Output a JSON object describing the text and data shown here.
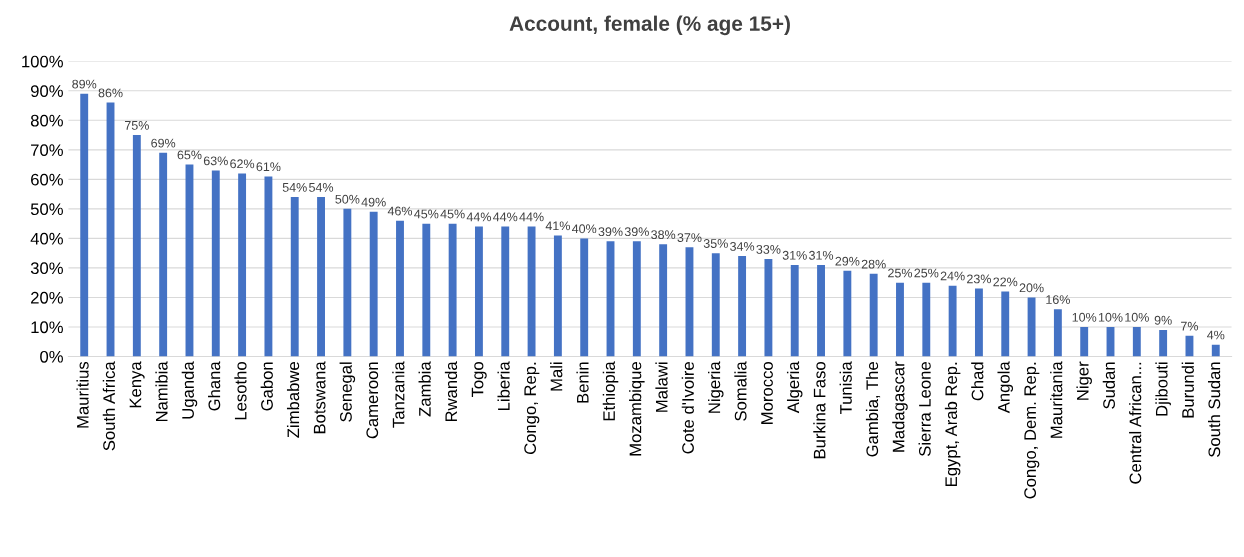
{
  "chart_data": {
    "type": "bar",
    "title": "Account, female (% age 15+)",
    "categories": [
      "Mauritius",
      "South Africa",
      "Kenya",
      "Namibia",
      "Uganda",
      "Ghana",
      "Lesotho",
      "Gabon",
      "Zimbabwe",
      "Botswana",
      "Senegal",
      "Cameroon",
      "Tanzania",
      "Zambia",
      "Rwanda",
      "Togo",
      "Liberia",
      "Congo, Rep.",
      "Mali",
      "Benin",
      "Ethiopia",
      "Mozambique",
      "Malawi",
      "Cote d'Ivoire",
      "Nigeria",
      "Somalia",
      "Morocco",
      "Algeria",
      "Burkina Faso",
      "Tunisia",
      "Gambia, The",
      "Madagascar",
      "Sierra Leone",
      "Egypt, Arab Rep.",
      "Chad",
      "Angola",
      "Congo, Dem. Rep.",
      "Mauritania",
      "Niger",
      "Sudan",
      "Central African...",
      "Djibouti",
      "Burundi",
      "South Sudan"
    ],
    "values": [
      89,
      86,
      75,
      69,
      65,
      63,
      62,
      61,
      54,
      54,
      50,
      49,
      46,
      45,
      45,
      44,
      44,
      44,
      41,
      40,
      39,
      39,
      38,
      37,
      35,
      34,
      33,
      31,
      31,
      29,
      28,
      25,
      25,
      24,
      23,
      22,
      20,
      16,
      10,
      10,
      10,
      9,
      7,
      4
    ],
    "value_labels": [
      "89%",
      "86%",
      "75%",
      "69%",
      "65%",
      "63%",
      "62%",
      "61%",
      "54%",
      "54%",
      "50%",
      "49%",
      "46%",
      "45%",
      "45%",
      "44%",
      "44%",
      "44%",
      "41%",
      "40%",
      "39%",
      "39%",
      "38%",
      "37%",
      "35%",
      "34%",
      "33%",
      "31%",
      "31%",
      "29%",
      "28%",
      "25%",
      "25%",
      "24%",
      "23%",
      "22%",
      "20%",
      "16%",
      "10%",
      "10%",
      "10%",
      "9%",
      "7%",
      "4%"
    ],
    "color": "#4472c4",
    "ylim": [
      0,
      100
    ],
    "yticks": [
      {
        "value": 0,
        "label": "0%"
      },
      {
        "value": 10,
        "label": "10%"
      },
      {
        "value": 20,
        "label": "20%"
      },
      {
        "value": 30,
        "label": "30%"
      },
      {
        "value": 40,
        "label": "40%"
      },
      {
        "value": 50,
        "label": "50%"
      },
      {
        "value": 60,
        "label": "60%"
      },
      {
        "value": 70,
        "label": "70%"
      },
      {
        "value": 80,
        "label": "80%"
      },
      {
        "value": 90,
        "label": "90%"
      },
      {
        "value": 100,
        "label": "100%"
      }
    ],
    "grid": "y"
  }
}
